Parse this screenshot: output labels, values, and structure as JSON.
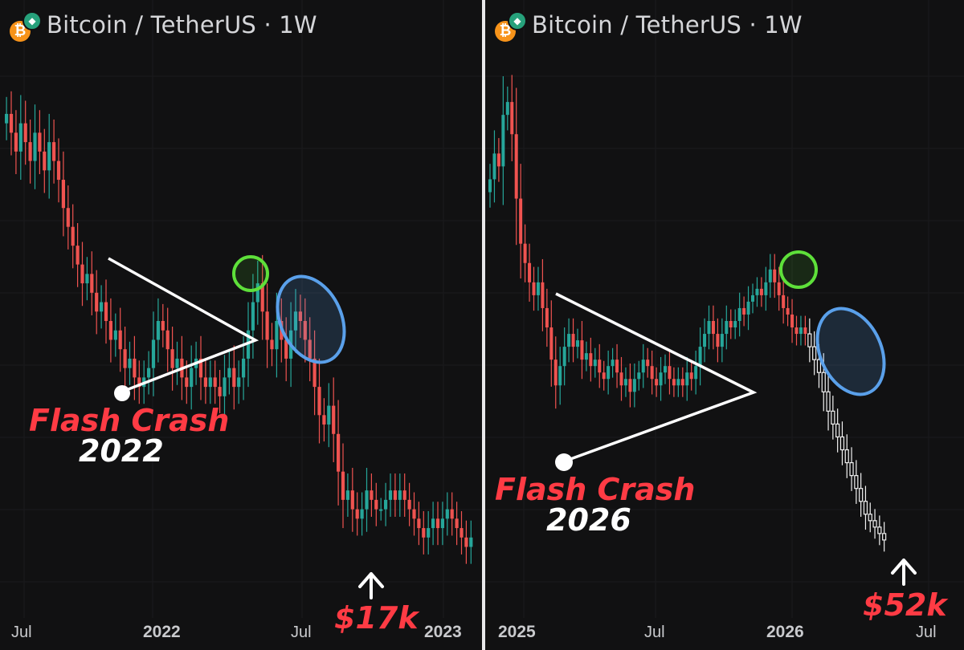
{
  "panels": [
    {
      "title": "Bitcoin / TetherUS · 1W",
      "coin_glyph": "₿",
      "x_ticks": [
        {
          "label": "Jul",
          "bold": false
        },
        {
          "label": "2022",
          "bold": true
        },
        {
          "label": "Jul",
          "bold": false
        },
        {
          "label": "2023",
          "bold": true
        }
      ],
      "annotation_label": "Flash Crash",
      "annotation_year": "2022",
      "price_label": "$17k"
    },
    {
      "title": "Bitcoin / TetherUS · 1W",
      "coin_glyph": "₿",
      "x_ticks": [
        {
          "label": "2025",
          "bold": true
        },
        {
          "label": "Jul",
          "bold": false
        },
        {
          "label": "2026",
          "bold": true
        },
        {
          "label": "Jul",
          "bold": false
        }
      ],
      "annotation_label": "Flash Crash",
      "annotation_year": "2026",
      "price_label": "$52k"
    }
  ],
  "colors": {
    "up": "#26a69a",
    "down": "#ef5350",
    "projection": "#f2f2f2",
    "triangle": "#ffffff",
    "green_circle": "#5ee03a",
    "blue_ellipse": "#5aa0ea",
    "accent_red": "#ff3b44"
  },
  "chart_data": [
    {
      "type": "candlestick",
      "pair": "Bitcoin / TetherUS",
      "interval": "1W",
      "candles_close": [
        62,
        60,
        58,
        61,
        59,
        57,
        60,
        58,
        56,
        59,
        57,
        55,
        52,
        50,
        48,
        46,
        44,
        45,
        43,
        41,
        42,
        40,
        38,
        39,
        37,
        35,
        36,
        34,
        33,
        34,
        35,
        38,
        40,
        39,
        37,
        35,
        36,
        34,
        33,
        35,
        36,
        34,
        33,
        34,
        33,
        32,
        34,
        35,
        33,
        34,
        36,
        39,
        42,
        44,
        41,
        38,
        37,
        40,
        38,
        36,
        39,
        41,
        40,
        38,
        36,
        33,
        30,
        29,
        31,
        28,
        24,
        21,
        22,
        20,
        19,
        20,
        22,
        21,
        20,
        20,
        21,
        22,
        21,
        22,
        21,
        20,
        19,
        18,
        17,
        18,
        19,
        18,
        19,
        20,
        19,
        18,
        17,
        16,
        17
      ],
      "events": {
        "flash_crash": "2022",
        "low_marker": "$17k"
      },
      "patterns": [
        "descending triangle",
        "green circle: relief rally top",
        "blue ellipse: lower-high distribution"
      ]
    },
    {
      "type": "candlestick",
      "pair": "Bitcoin / TetherUS",
      "interval": "1W",
      "candles_close": [
        108,
        112,
        110,
        118,
        120,
        115,
        105,
        98,
        95,
        92,
        90,
        92,
        88,
        85,
        80,
        76,
        79,
        82,
        84,
        82,
        83,
        80,
        81,
        79,
        80,
        78,
        77,
        79,
        80,
        78,
        76,
        77,
        75,
        77,
        78,
        80,
        79,
        77,
        76,
        78,
        79,
        77,
        76,
        77,
        76,
        78,
        77,
        79,
        82,
        84,
        86,
        84,
        82,
        84,
        86,
        85,
        86,
        88,
        87,
        89,
        90,
        91,
        90,
        92,
        94,
        92,
        90,
        88,
        87,
        85,
        84,
        85,
        84
      ],
      "projection_close": [
        82,
        80,
        78,
        75,
        72,
        70,
        68,
        66,
        64,
        62,
        60,
        58,
        56,
        55,
        54,
        53,
        52
      ],
      "events": {
        "flash_crash": "2026",
        "projected_low": "$52k"
      },
      "patterns": [
        "descending triangle",
        "green circle: relief rally top",
        "blue ellipse: lower-high distribution",
        "white candles: projected path"
      ]
    }
  ]
}
